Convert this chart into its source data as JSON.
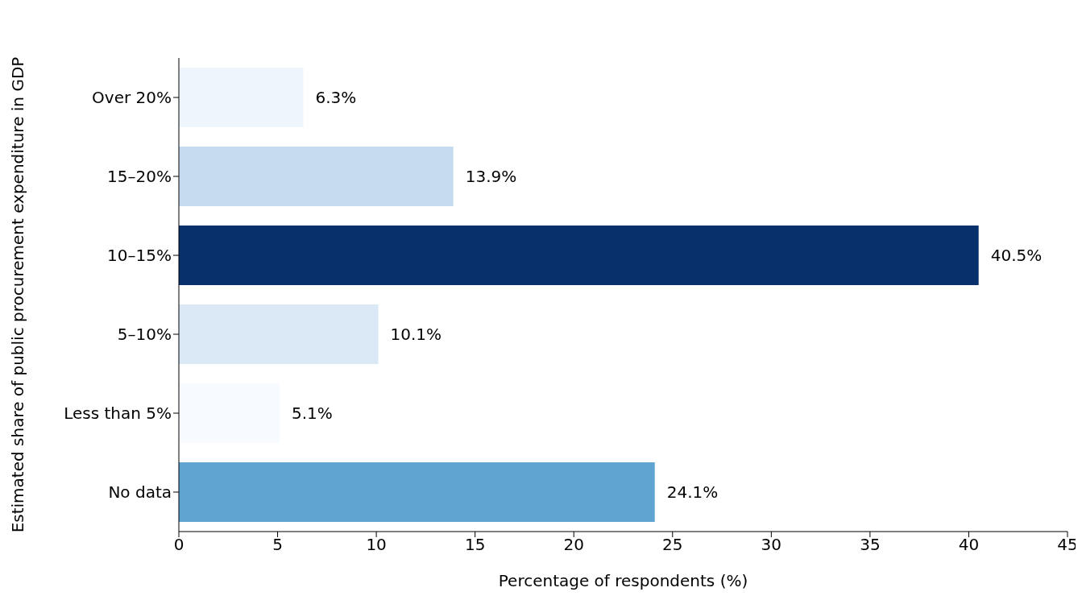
{
  "chart_data": {
    "type": "bar",
    "orientation": "horizontal",
    "xlabel": "Percentage of respondents (%)",
    "ylabel": "Estimated share of public procurement expenditure in GDP",
    "categories": [
      "Over 20%",
      "15–20%",
      "10–15%",
      "5–10%",
      "Less than 5%",
      "No data"
    ],
    "values": [
      6.3,
      13.9,
      40.5,
      10.1,
      5.1,
      24.1
    ],
    "colors": [
      "#eff5fd",
      "#c6dbef",
      "#08306b",
      "#dbe9f6",
      "#f7fbff",
      "#60a5d2"
    ],
    "value_labels": [
      "6.3%",
      "13.9%",
      "40.5%",
      "10.1%",
      "5.1%",
      "24.1%"
    ],
    "xlim": [
      0,
      45
    ],
    "xticks": [
      0,
      5,
      10,
      15,
      20,
      25,
      30,
      35,
      40,
      45
    ],
    "grid": false,
    "legend": false
  }
}
